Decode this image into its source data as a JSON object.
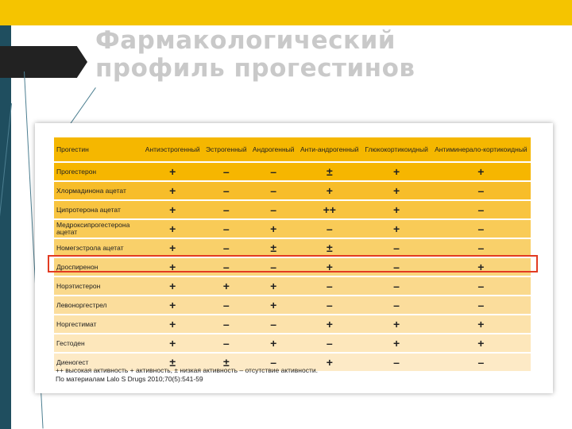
{
  "title": {
    "line1": "Фармакологический",
    "line2": "профиль прогестинов"
  },
  "table": {
    "headers": [
      "Прогестин",
      "Антиэстрогенный",
      "Эстрогенный",
      "Андрогенный",
      "Анти-андрогенный",
      "Глюкокортикоидный",
      "Антиминерало-кортикоидный"
    ],
    "rows": [
      {
        "name": "Прогестерон",
        "values": [
          "+",
          "–",
          "–",
          "±",
          "+",
          "+"
        ]
      },
      {
        "name": "Хлормадинона ацетат",
        "values": [
          "+",
          "–",
          "–",
          "+",
          "+",
          "–"
        ]
      },
      {
        "name": "Ципротерона ацетат",
        "values": [
          "+",
          "–",
          "–",
          "++",
          "+",
          "–"
        ]
      },
      {
        "name": "Медроксипрогестерона ацетат",
        "values": [
          "+",
          "–",
          "+",
          "–",
          "+",
          "–"
        ]
      },
      {
        "name": "Номегэстрола ацетат",
        "values": [
          "+",
          "–",
          "±",
          "±",
          "–",
          "–"
        ]
      },
      {
        "name": "Дроспиренон",
        "values": [
          "+",
          "–",
          "–",
          "+",
          "–",
          "+"
        ]
      },
      {
        "name": "Норэтистерон",
        "values": [
          "+",
          "+",
          "+",
          "–",
          "–",
          "–"
        ]
      },
      {
        "name": "Левоноргестрел",
        "values": [
          "+",
          "–",
          "+",
          "–",
          "–",
          "–"
        ]
      },
      {
        "name": "Норгестимат",
        "values": [
          "+",
          "–",
          "–",
          "+",
          "+",
          "+"
        ]
      },
      {
        "name": "Гестоден",
        "values": [
          "+",
          "–",
          "+",
          "–",
          "+",
          "+"
        ]
      },
      {
        "name": "Диеногест",
        "values": [
          "±",
          "±",
          "–",
          "+",
          "–",
          "–"
        ]
      }
    ]
  },
  "footnote": {
    "line1": "++ высокая активность + активность, ± низкая активность – отсутствие активности.",
    "line2": "По материалам Lalo S Drugs 2010;70(5):541-59"
  },
  "colors": {
    "accent": "#f5c400",
    "sidebar": "#1f4e5f",
    "highlight": "#e23b22"
  }
}
